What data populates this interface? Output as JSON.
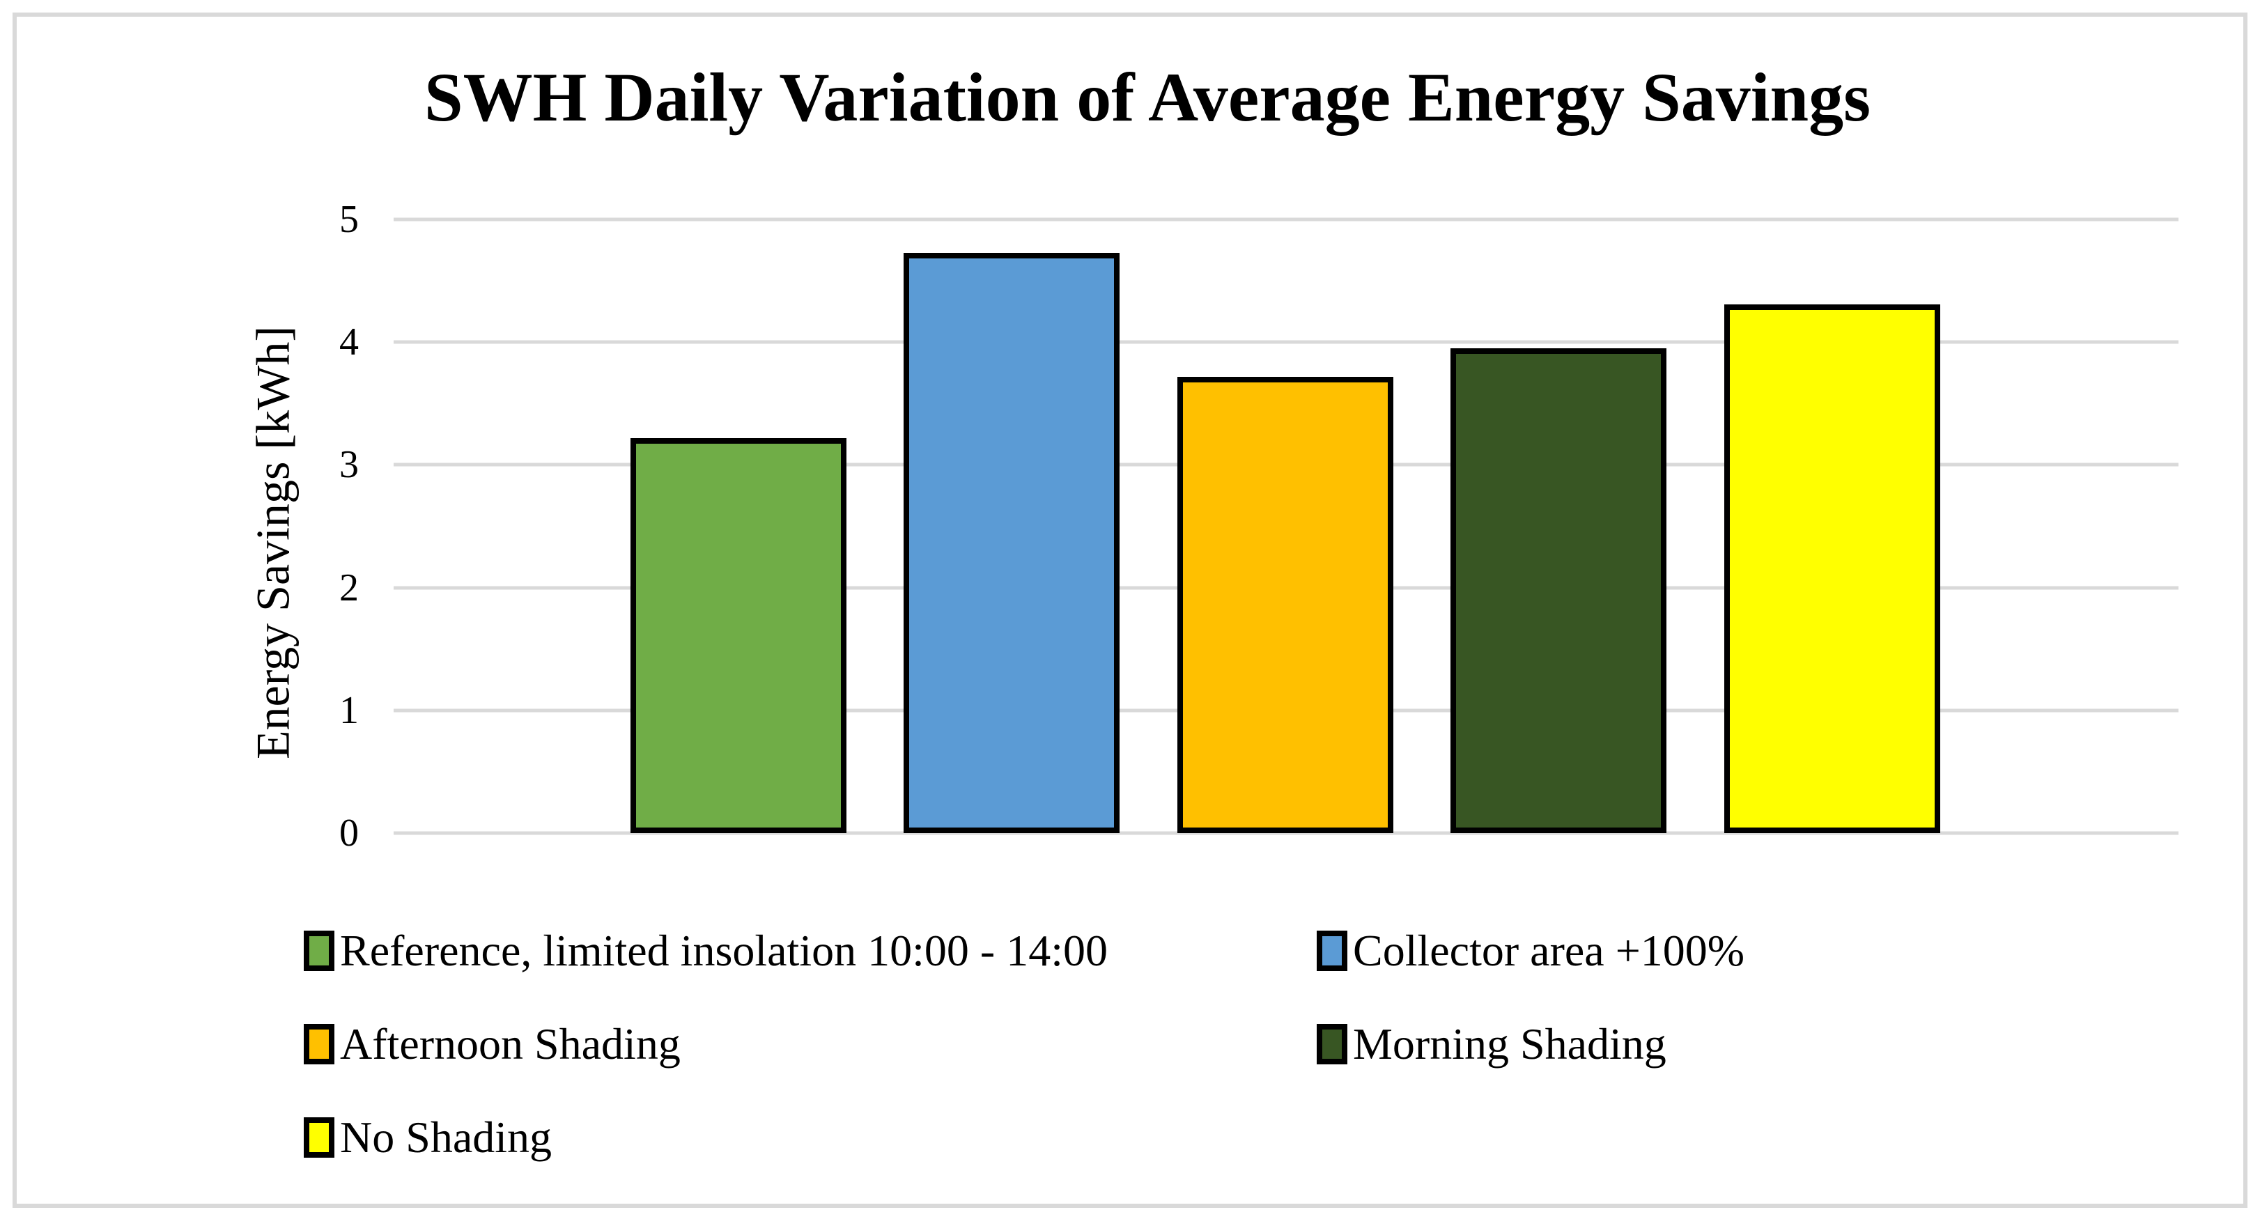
{
  "chart_data": {
    "type": "bar",
    "title": "SWH Daily Variation of Average Energy Savings",
    "xlabel": "",
    "ylabel": "Energy Savings [kWh]",
    "ylim": [
      0,
      5
    ],
    "yticks": [
      0,
      1,
      2,
      3,
      4,
      5
    ],
    "grid": "horizontal",
    "gridline_color": "#D9D9D9",
    "bar_border_color": "#000000",
    "legend_position": "bottom",
    "series": [
      {
        "name": "Reference, limited insolation 10:00 - 14:00",
        "value": 3.22,
        "color": "#70AD47"
      },
      {
        "name": "Collector area +100%",
        "value": 4.73,
        "color": "#5B9BD5"
      },
      {
        "name": "Afternoon Shading",
        "value": 3.72,
        "color": "#FFC000"
      },
      {
        "name": "Morning Shading",
        "value": 3.95,
        "color": "#385623"
      },
      {
        "name": "No Shading",
        "value": 4.31,
        "color": "#FFFF00"
      }
    ]
  }
}
